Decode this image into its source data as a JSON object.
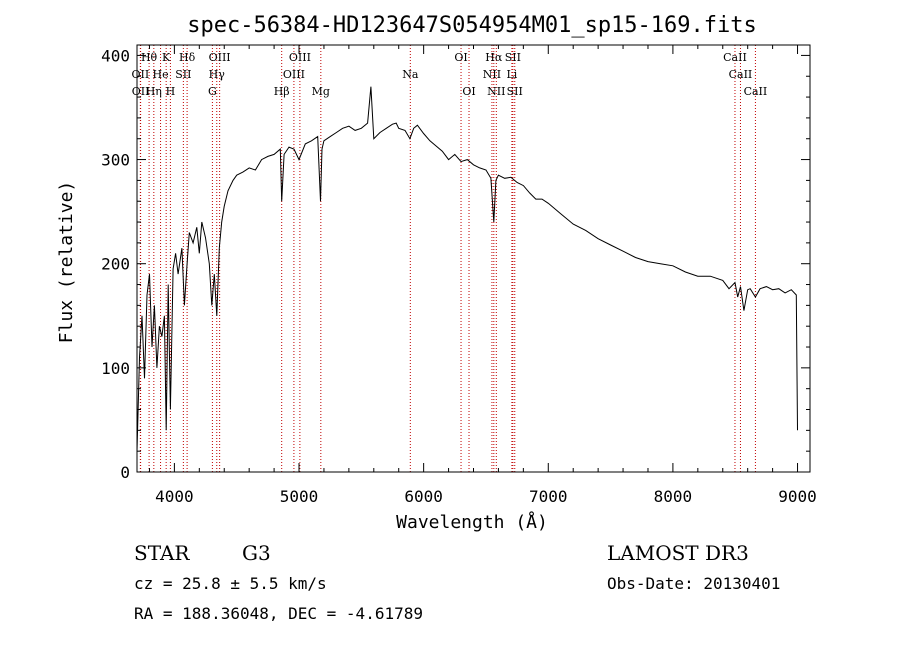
{
  "chart_data": {
    "type": "line",
    "title": "spec-56384-HD123647S054954M01_sp15-169.fits",
    "xlabel": "Wavelength (Å)",
    "ylabel": "Flux (relative)",
    "xlim": [
      3700,
      9100
    ],
    "ylim": [
      0,
      410
    ],
    "x_ticks": [
      4000,
      5000,
      6000,
      7000,
      8000,
      9000
    ],
    "y_ticks": [
      0,
      100,
      200,
      300,
      400
    ],
    "x_tick_labels": [
      "4000",
      "5000",
      "6000",
      "7000",
      "8000",
      "9000"
    ],
    "y_tick_labels": [
      "0",
      "100",
      "200",
      "300",
      "400"
    ],
    "series": [
      {
        "name": "spectrum",
        "x": [
          3700,
          3720,
          3740,
          3760,
          3780,
          3800,
          3820,
          3840,
          3860,
          3880,
          3900,
          3920,
          3934,
          3950,
          3968,
          3990,
          4010,
          4030,
          4060,
          4080,
          4102,
          4120,
          4150,
          4180,
          4200,
          4220,
          4250,
          4280,
          4300,
          4320,
          4340,
          4360,
          4380,
          4400,
          4430,
          4470,
          4500,
          4550,
          4600,
          4650,
          4700,
          4750,
          4800,
          4850,
          4861,
          4880,
          4920,
          4960,
          5000,
          5050,
          5100,
          5150,
          5172,
          5184,
          5200,
          5250,
          5300,
          5350,
          5400,
          5450,
          5500,
          5550,
          5577,
          5600,
          5650,
          5700,
          5750,
          5780,
          5800,
          5850,
          5890,
          5920,
          5950,
          6000,
          6050,
          6100,
          6150,
          6200,
          6250,
          6300,
          6350,
          6400,
          6450,
          6500,
          6540,
          6563,
          6580,
          6600,
          6650,
          6700,
          6750,
          6800,
          6850,
          6900,
          6950,
          7000,
          7100,
          7200,
          7300,
          7400,
          7500,
          7600,
          7700,
          7800,
          7900,
          8000,
          8100,
          8200,
          8300,
          8400,
          8450,
          8498,
          8520,
          8542,
          8570,
          8600,
          8620,
          8662,
          8700,
          8750,
          8800,
          8850,
          8900,
          8950,
          8990,
          9000
        ],
        "y": [
          20,
          110,
          150,
          90,
          170,
          190,
          120,
          160,
          100,
          140,
          130,
          150,
          40,
          180,
          60,
          195,
          210,
          190,
          215,
          160,
          200,
          230,
          220,
          235,
          210,
          240,
          225,
          200,
          160,
          190,
          150,
          215,
          240,
          255,
          270,
          280,
          285,
          288,
          292,
          290,
          300,
          303,
          305,
          310,
          260,
          305,
          312,
          310,
          300,
          315,
          318,
          322,
          260,
          310,
          318,
          322,
          326,
          330,
          332,
          328,
          330,
          335,
          370,
          320,
          326,
          330,
          334,
          335,
          330,
          328,
          320,
          330,
          333,
          325,
          318,
          313,
          308,
          300,
          305,
          298,
          300,
          295,
          292,
          290,
          282,
          240,
          280,
          285,
          282,
          283,
          278,
          275,
          268,
          262,
          262,
          258,
          248,
          238,
          232,
          224,
          218,
          212,
          206,
          202,
          200,
          198,
          192,
          188,
          188,
          184,
          176,
          182,
          168,
          178,
          155,
          175,
          176,
          168,
          176,
          178,
          175,
          176,
          172,
          175,
          170,
          40
        ]
      }
    ],
    "lines": [
      {
        "label": "Hθ",
        "x": 3797,
        "row": 0
      },
      {
        "label": "K",
        "x": 3934,
        "row": 0
      },
      {
        "label": "Hδ",
        "x": 4102,
        "row": 0
      },
      {
        "label": "OIII",
        "x": 4363,
        "row": 0
      },
      {
        "label": "OIII",
        "x": 5007,
        "row": 0
      },
      {
        "label": "OI",
        "x": 6300,
        "row": 0
      },
      {
        "label": "Hα",
        "x": 6563,
        "row": 0
      },
      {
        "label": "SII",
        "x": 6716,
        "row": 0
      },
      {
        "label": "CaII",
        "x": 8498,
        "row": 0
      },
      {
        "label": "OII",
        "x": 3727,
        "row": 1
      },
      {
        "label": "He",
        "x": 3889,
        "row": 1
      },
      {
        "label": "SII",
        "x": 4072,
        "row": 1
      },
      {
        "label": "Hγ",
        "x": 4340,
        "row": 1
      },
      {
        "label": "OIII",
        "x": 4959,
        "row": 1
      },
      {
        "label": "Na",
        "x": 5893,
        "row": 1
      },
      {
        "label": "NII",
        "x": 6548,
        "row": 1
      },
      {
        "label": "Li",
        "x": 6708,
        "row": 1
      },
      {
        "label": "CaII",
        "x": 8542,
        "row": 1
      },
      {
        "label": "OII",
        "x": 3729,
        "row": 2
      },
      {
        "label": "Hη",
        "x": 3835,
        "row": 2
      },
      {
        "label": "H",
        "x": 3968,
        "row": 2
      },
      {
        "label": "G",
        "x": 4305,
        "row": 2
      },
      {
        "label": "Hβ",
        "x": 4861,
        "row": 2
      },
      {
        "label": "Mg",
        "x": 5175,
        "row": 2
      },
      {
        "label": "OI",
        "x": 6364,
        "row": 2
      },
      {
        "label": "NII",
        "x": 6583,
        "row": 2
      },
      {
        "label": "SII",
        "x": 6731,
        "row": 2
      },
      {
        "label": "CaII",
        "x": 8662,
        "row": 2
      }
    ]
  },
  "footer": {
    "object_class": "STAR",
    "subclass": "G3",
    "survey": "LAMOST DR3",
    "cz": "cz = 25.8 ± 5.5 km/s",
    "obs_date": "Obs-Date: 20130401",
    "coords": "RA = 188.36048, DEC =  -4.61789"
  },
  "colors": {
    "line_markers": "#c00000",
    "spectrum": "#000000"
  }
}
